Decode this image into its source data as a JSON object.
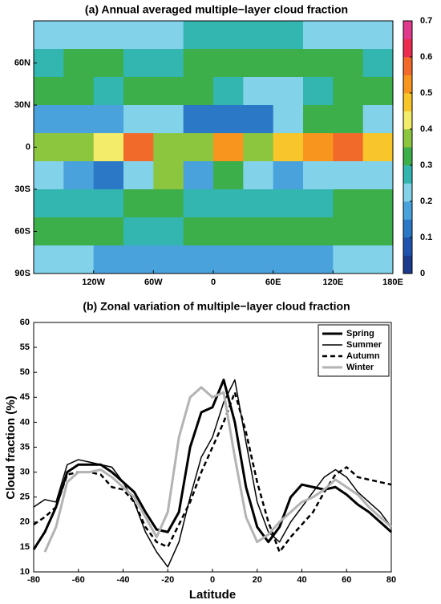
{
  "chart_data": [
    {
      "type": "heatmap",
      "title": "(a) Annual averaged multiple−layer cloud fraction",
      "x_edges": [
        -180,
        -150,
        -120,
        -90,
        -60,
        -30,
        0,
        30,
        60,
        90,
        120,
        150,
        180
      ],
      "y_edges": [
        90,
        70,
        50,
        30,
        10,
        -10,
        -30,
        -50,
        -70,
        -90
      ],
      "values": [
        [
          0.2,
          0.2,
          0.2,
          0.2,
          0.2,
          0.25,
          0.25,
          0.25,
          0.25,
          0.2,
          0.2,
          0.2
        ],
        [
          0.25,
          0.3,
          0.3,
          0.25,
          0.25,
          0.3,
          0.3,
          0.3,
          0.3,
          0.3,
          0.3,
          0.25
        ],
        [
          0.3,
          0.3,
          0.25,
          0.3,
          0.3,
          0.3,
          0.25,
          0.2,
          0.2,
          0.25,
          0.3,
          0.3
        ],
        [
          0.15,
          0.15,
          0.15,
          0.2,
          0.2,
          0.1,
          0.1,
          0.1,
          0.2,
          0.3,
          0.3,
          0.2
        ],
        [
          0.35,
          0.35,
          0.4,
          0.55,
          0.35,
          0.35,
          0.5,
          0.35,
          0.45,
          0.5,
          0.55,
          0.45
        ],
        [
          0.2,
          0.15,
          0.1,
          0.2,
          0.35,
          0.15,
          0.3,
          0.2,
          0.15,
          0.2,
          0.2,
          0.2
        ],
        [
          0.25,
          0.25,
          0.25,
          0.3,
          0.3,
          0.25,
          0.25,
          0.25,
          0.25,
          0.25,
          0.3,
          0.3
        ],
        [
          0.3,
          0.3,
          0.3,
          0.25,
          0.25,
          0.3,
          0.3,
          0.3,
          0.3,
          0.3,
          0.3,
          0.3
        ],
        [
          0.2,
          0.2,
          0.15,
          0.15,
          0.15,
          0.15,
          0.15,
          0.15,
          0.15,
          0.15,
          0.2,
          0.2
        ]
      ],
      "xlim": [
        -180,
        180
      ],
      "ylim": [
        -90,
        90
      ],
      "xticks": [
        {
          "value": -120,
          "label": "120W"
        },
        {
          "value": -60,
          "label": "60W"
        },
        0,
        {
          "value": 60,
          "label": "60E"
        },
        {
          "value": 120,
          "label": "120E"
        },
        {
          "value": 180,
          "label": "180E"
        }
      ],
      "yticks": [
        {
          "value": -90,
          "label": "90S"
        },
        {
          "value": -60,
          "label": "60S"
        },
        {
          "value": -30,
          "label": "30S"
        },
        0,
        {
          "value": 30,
          "label": "30N"
        },
        {
          "value": 60,
          "label": "60N"
        }
      ],
      "colorbar": {
        "lim": [
          0,
          0.7
        ],
        "ticks": [
          0,
          0.1,
          0.2,
          0.3,
          0.4,
          0.5,
          0.6,
          0.7
        ],
        "colors": [
          "#1b3a8c",
          "#2053ad",
          "#2a78c6",
          "#4aa2dc",
          "#82d2ea",
          "#33b6b0",
          "#3cae4a",
          "#8cc63f",
          "#f2ec6a",
          "#f8c52a",
          "#f7951f",
          "#f26a2a",
          "#ec2c4f",
          "#df3a8c"
        ]
      }
    },
    {
      "type": "line",
      "title": "(b) Zonal variation  of multiple−layer cloud fraction",
      "x_label": "Latitude",
      "y_label": "Cloud fraction (%)",
      "x": [
        -80,
        -75,
        -70,
        -65,
        -60,
        -55,
        -50,
        -45,
        -40,
        -35,
        -30,
        -25,
        -20,
        -15,
        -10,
        -5,
        0,
        5,
        10,
        15,
        20,
        25,
        30,
        35,
        40,
        45,
        50,
        55,
        60,
        65,
        70,
        75,
        80
      ],
      "series": [
        {
          "name": "Spring",
          "color": "#000000",
          "width": 3,
          "dashed": false,
          "values": [
            14.5,
            18,
            23,
            30,
            31.5,
            31.5,
            31.5,
            30,
            28,
            26,
            22,
            18.5,
            18,
            22,
            35,
            42,
            43,
            48.5,
            40,
            27,
            19,
            16,
            19,
            25,
            27.5,
            27,
            26.5,
            27,
            25.5,
            23.5,
            22,
            20,
            18
          ]
        },
        {
          "name": "Summer",
          "color": "#000000",
          "width": 1.5,
          "dashed": false,
          "values": [
            23,
            24.5,
            24,
            31.5,
            32.5,
            32,
            31.5,
            31,
            28,
            24,
            18,
            14,
            11,
            16,
            25,
            33,
            37,
            44,
            48.5,
            36,
            24,
            18,
            16,
            20,
            23,
            26,
            29,
            30.5,
            29,
            26,
            24,
            22,
            19
          ]
        },
        {
          "name": "Autumn",
          "color": "#000000",
          "width": 2.5,
          "dashed": true,
          "values": [
            19.5,
            21,
            23,
            29.5,
            30,
            30,
            29.5,
            27,
            26.5,
            24,
            19,
            16,
            15,
            19.5,
            24,
            30,
            35,
            40,
            46,
            38,
            28,
            20,
            14,
            17,
            19.5,
            22,
            26,
            29.5,
            31,
            29,
            28.5,
            28,
            27.5
          ]
        },
        {
          "name": "Winter",
          "color": "#b3b3b3",
          "width": 3,
          "dashed": false,
          "values": [
            null,
            14,
            19,
            28,
            30,
            30,
            30.5,
            29,
            27,
            25,
            21,
            17,
            22,
            37,
            45,
            47,
            45,
            46,
            33,
            21,
            16,
            17.5,
            20,
            22,
            24,
            25,
            26.5,
            28.5,
            27,
            25.5,
            23,
            21,
            19
          ]
        }
      ],
      "xlim": [
        -80,
        80
      ],
      "ylim": [
        10,
        60
      ],
      "xticks": [
        -80,
        -60,
        -40,
        -20,
        0,
        20,
        40,
        60,
        80
      ],
      "yticks": [
        10,
        15,
        20,
        25,
        30,
        35,
        40,
        45,
        50,
        55,
        60
      ],
      "legend": "upper right"
    }
  ]
}
